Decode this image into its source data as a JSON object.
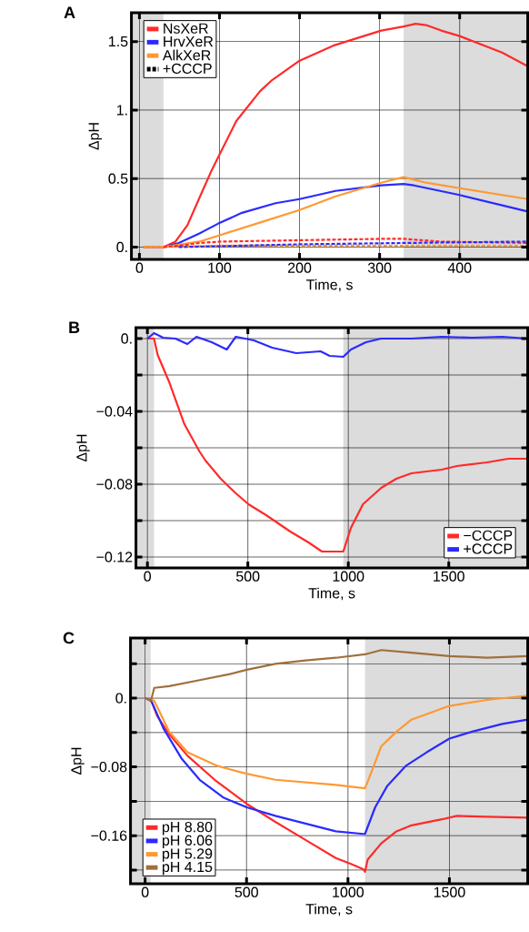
{
  "chart_data": [
    {
      "type": "line",
      "title": "A",
      "xlabel": "Time, s",
      "ylabel": "ΔpH",
      "xlim": [
        -10,
        485
      ],
      "ylim": [
        -0.09,
        1.71
      ],
      "xticks": [
        0,
        100,
        200,
        300,
        400
      ],
      "yticks": [
        {
          "value": 0,
          "label": "0."
        },
        0.5,
        {
          "value": 1,
          "label": "1."
        },
        1.5
      ],
      "grid": true,
      "legend": "top left",
      "line_style": "solid",
      "bands": [
        {
          "axis": "x",
          "from": -10,
          "to": 30,
          "color": "#dcdcdc"
        },
        {
          "axis": "x",
          "from": 330,
          "to": 485,
          "color": "#dcdcdc"
        }
      ],
      "series": [
        {
          "name": "NsXeR",
          "color": "#ff2a2a",
          "x": [
            5,
            30,
            45,
            60,
            75,
            91,
            121,
            151,
            166,
            200,
            242,
            302,
            330,
            345,
            358,
            377,
            400,
            453,
            485
          ],
          "values": [
            0,
            0,
            0.04,
            0.16,
            0.36,
            0.57,
            0.92,
            1.14,
            1.22,
            1.36,
            1.47,
            1.58,
            1.61,
            1.63,
            1.62,
            1.58,
            1.54,
            1.42,
            1.32
          ]
        },
        {
          "name": "HrvXeR",
          "color": "#2a2aff",
          "x": [
            5,
            30,
            49,
            75,
            98,
            128,
            170,
            200,
            245,
            302,
            330,
            343,
            400,
            485
          ],
          "values": [
            0,
            0,
            0.03,
            0.1,
            0.17,
            0.25,
            0.32,
            0.35,
            0.41,
            0.45,
            0.46,
            0.45,
            0.38,
            0.26
          ]
        },
        {
          "name": "AlkXeR",
          "color": "#ff9933",
          "x": [
            5,
            30,
            53,
            75,
            113,
            151,
            200,
            245,
            302,
            330,
            358,
            400,
            485
          ],
          "values": [
            0,
            0,
            0.02,
            0.04,
            0.11,
            0.18,
            0.27,
            0.37,
            0.47,
            0.51,
            0.47,
            0.43,
            0.35
          ]
        },
        {
          "color": "#ff9933",
          "line_style": "dashed",
          "x": [
            5,
            100,
            330,
            485
          ],
          "values": [
            0,
            0.01,
            0.01,
            0.01
          ]
        },
        {
          "color": "#ff2a2a",
          "line_style": "dashed",
          "x": [
            30,
            50,
            75,
            102,
            200,
            302,
            330,
            377,
            485
          ],
          "values": [
            0,
            0.01,
            0.03,
            0.04,
            0.05,
            0.06,
            0.06,
            0.04,
            0.03
          ]
        },
        {
          "color": "#2a2aff",
          "line_style": "dashed",
          "x": [
            49,
            200,
            330,
            485
          ],
          "values": [
            0,
            0.02,
            0.03,
            0.04
          ]
        },
        {
          "name": "+CCCP",
          "color": "#000000",
          "line_style": "dashed"
        }
      ]
    },
    {
      "type": "line",
      "title": "B",
      "xlabel": "Time, s",
      "ylabel": "ΔpH",
      "xlim": [
        -57,
        1893
      ],
      "ylim": [
        -0.126,
        0.006
      ],
      "xticks": [
        0,
        500,
        1000,
        1500
      ],
      "yticks": [
        {
          "value": 0,
          "label": "0."
        },
        {
          "value": -0.02,
          "label": null
        },
        {
          "value": -0.04,
          "label": "−0.04"
        },
        {
          "value": -0.06,
          "label": null
        },
        {
          "value": -0.08,
          "label": "−0.08"
        },
        {
          "value": -0.1,
          "label": null
        },
        {
          "value": -0.12,
          "label": "−0.12"
        }
      ],
      "grid": true,
      "legend": "bottom right",
      "bands": [
        {
          "axis": "x",
          "from": -57,
          "to": 33,
          "color": "#dcdcdc"
        },
        {
          "axis": "x",
          "from": 975,
          "to": 1893,
          "color": "#dcdcdc"
        }
      ],
      "series": [
        {
          "name": "−CCCP",
          "color": "#ff2a2a",
          "x": [
            0,
            33,
            51,
            109,
            184,
            259,
            289,
            365,
            440,
            503,
            591,
            711,
            802,
            869,
            975,
            1013,
            1073,
            1164,
            1239,
            1314,
            1465,
            1541,
            1691,
            1797,
            1893
          ],
          "values": [
            0,
            0,
            -0.009,
            -0.024,
            -0.047,
            -0.062,
            -0.067,
            -0.077,
            -0.085,
            -0.091,
            -0.097,
            -0.106,
            -0.112,
            -0.117,
            -0.117,
            -0.104,
            -0.091,
            -0.082,
            -0.077,
            -0.074,
            -0.072,
            -0.07,
            -0.068,
            -0.066,
            -0.066
          ]
        },
        {
          "name": "+CCCP",
          "color": "#2a2aff",
          "x": [
            0,
            33,
            78,
            139,
            199,
            244,
            320,
            395,
            440,
            530,
            621,
            741,
            862,
            907,
            975,
            1013,
            1088,
            1164,
            1314,
            1465,
            1616,
            1767,
            1893
          ],
          "values": [
            0,
            0.003,
            0.0005,
            0,
            -0.003,
            0.001,
            -0.002,
            -0.006,
            0.001,
            -0.001,
            -0.005,
            -0.008,
            -0.007,
            -0.0095,
            -0.01,
            -0.006,
            -0.002,
            0,
            0,
            0.001,
            0.0005,
            0.001,
            0
          ]
        }
      ]
    },
    {
      "type": "line",
      "title": "C",
      "xlabel": "Time, s",
      "ylabel": "ΔpH",
      "xlim": [
        -72,
        1886
      ],
      "ylim": [
        -0.216,
        0.07
      ],
      "xticks": [
        0,
        500,
        1000,
        1500
      ],
      "yticks": [
        {
          "value": 0.04,
          "label": null
        },
        {
          "value": 0,
          "label": "0."
        },
        {
          "value": -0.04,
          "label": null
        },
        {
          "value": -0.08,
          "label": "−0.08"
        },
        {
          "value": -0.12,
          "label": null
        },
        {
          "value": -0.16,
          "label": "−0.16"
        },
        {
          "value": -0.2,
          "label": null
        }
      ],
      "grid": true,
      "legend": "bottom left",
      "bands": [
        {
          "axis": "x",
          "from": -72,
          "to": 27,
          "color": "#dcdcdc"
        },
        {
          "axis": "x",
          "from": 1084,
          "to": 1886,
          "color": "#dcdcdc"
        }
      ],
      "series": [
        {
          "name": "pH 8.80",
          "color": "#ff2a2a",
          "x": [
            0,
            30,
            60,
            119,
            209,
            343,
            501,
            642,
            791,
            940,
            1015,
            1075,
            1084,
            1097,
            1164,
            1239,
            1313,
            1463,
            1537,
            1686,
            1886
          ],
          "values": [
            0,
            -0.003,
            -0.021,
            -0.042,
            -0.067,
            -0.095,
            -0.123,
            -0.144,
            -0.165,
            -0.186,
            -0.193,
            -0.199,
            -0.202,
            -0.188,
            -0.169,
            -0.155,
            -0.148,
            -0.141,
            -0.137,
            -0.138,
            -0.139
          ]
        },
        {
          "name": "pH 6.06",
          "color": "#2a2aff",
          "x": [
            0,
            30,
            90,
            179,
            269,
            388,
            501,
            642,
            791,
            940,
            1075,
            1084,
            1134,
            1194,
            1284,
            1388,
            1500,
            1612,
            1761,
            1886
          ],
          "values": [
            0,
            -0.003,
            -0.035,
            -0.07,
            -0.095,
            -0.116,
            -0.127,
            -0.137,
            -0.146,
            -0.155,
            -0.158,
            -0.158,
            -0.127,
            -0.102,
            -0.079,
            -0.063,
            -0.047,
            -0.039,
            -0.03,
            -0.025
          ]
        },
        {
          "name": "pH 5.29",
          "color": "#ff9933",
          "x": [
            0,
            45,
            119,
            209,
            358,
            501,
            642,
            791,
            940,
            1084,
            1119,
            1164,
            1239,
            1313,
            1500,
            1686,
            1886
          ],
          "values": [
            0,
            -0.003,
            -0.039,
            -0.063,
            -0.079,
            -0.088,
            -0.095,
            -0.098,
            -0.101,
            -0.105,
            -0.084,
            -0.056,
            -0.039,
            -0.025,
            -0.009,
            -0.002,
            0.003
          ]
        },
        {
          "name": "pH 4.15",
          "color": "#a0703c",
          "x": [
            0,
            30,
            45,
            119,
            269,
            418,
            501,
            642,
            791,
            940,
            1084,
            1164,
            1313,
            1500,
            1686,
            1886
          ],
          "values": [
            0,
            -0.002,
            0.012,
            0.014,
            0.021,
            0.028,
            0.033,
            0.04,
            0.044,
            0.047,
            0.051,
            0.056,
            0.053,
            0.049,
            0.047,
            0.049
          ]
        }
      ]
    }
  ]
}
